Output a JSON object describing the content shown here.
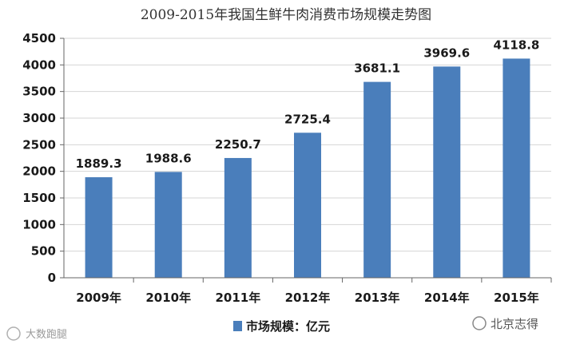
{
  "chart_data": {
    "type": "bar",
    "title": "2009-2015年我国生鲜牛肉消费市场规模走势图",
    "categories": [
      "2009年",
      "2010年",
      "2011年",
      "2012年",
      "2013年",
      "2014年",
      "2015年"
    ],
    "series": [
      {
        "name": "市场规模：亿元",
        "values": [
          1889.3,
          1988.6,
          2250.7,
          2725.4,
          3681.1,
          3969.6,
          4118.8
        ]
      }
    ],
    "data_labels": [
      "1889.3",
      "1988.6",
      "2250.7",
      "2725.4",
      "3681.1",
      "3969.6",
      "4118.8"
    ],
    "y_ticks": [
      "0",
      "500",
      "1000",
      "1500",
      "2000",
      "2500",
      "3000",
      "3500",
      "4000",
      "4500"
    ],
    "ylim": [
      0,
      4500
    ],
    "grid": true,
    "legend_position": "bottom",
    "bar_color": "#4a7ebb",
    "xlabel": "",
    "ylabel": ""
  },
  "watermarks": {
    "left": "大数跑腿",
    "right": "北京志得"
  }
}
